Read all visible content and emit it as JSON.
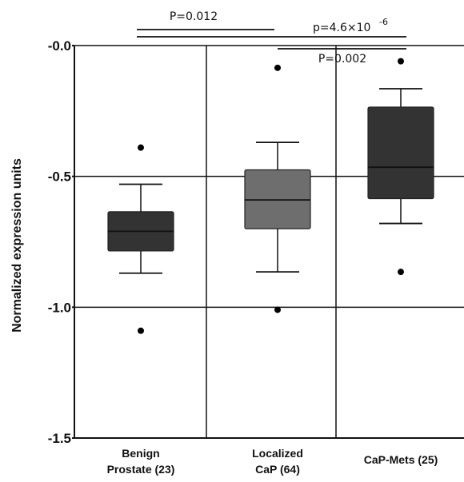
{
  "chart_data": {
    "type": "box",
    "ylabel": "Normalized expression units",
    "ylim": [
      -1.5,
      0.0
    ],
    "yticks": [
      {
        "value": 0.0,
        "label": "-0.0"
      },
      {
        "value": -0.5,
        "label": "-0.5"
      },
      {
        "value": -1.0,
        "label": "-1.0"
      },
      {
        "value": -1.5,
        "label": "-1.5"
      }
    ],
    "grid": true,
    "categories": [
      {
        "lines": [
          "Benign",
          "Prostate (23)"
        ]
      },
      {
        "lines": [
          "Localized",
          "CaP (64)"
        ]
      },
      {
        "lines": [
          "CaP-Mets (25)"
        ]
      }
    ],
    "boxes": [
      {
        "q1": -0.785,
        "median": -0.71,
        "q3": -0.635,
        "whisker_low": -0.87,
        "whisker_high": -0.53,
        "outliers": [
          -0.39,
          -1.09
        ],
        "color": "#333333"
      },
      {
        "q1": -0.7,
        "median": -0.59,
        "q3": -0.475,
        "whisker_low": -0.865,
        "whisker_high": -0.37,
        "outliers": [
          -0.085,
          -1.01
        ],
        "color": "#6e6e6e"
      },
      {
        "q1": -0.585,
        "median": -0.465,
        "q3": -0.235,
        "whisker_low": -0.68,
        "whisker_high": -0.165,
        "outliers": [
          -0.06,
          -0.865
        ],
        "color": "#333333"
      }
    ],
    "annotations": [
      {
        "text": "P=0.012",
        "from": 0,
        "to": 1
      },
      {
        "text": "p=4.6×10",
        "superscript": "-6",
        "from": 0,
        "to": 2
      },
      {
        "text": "P=0.002",
        "from": 1,
        "to": 2
      }
    ]
  }
}
